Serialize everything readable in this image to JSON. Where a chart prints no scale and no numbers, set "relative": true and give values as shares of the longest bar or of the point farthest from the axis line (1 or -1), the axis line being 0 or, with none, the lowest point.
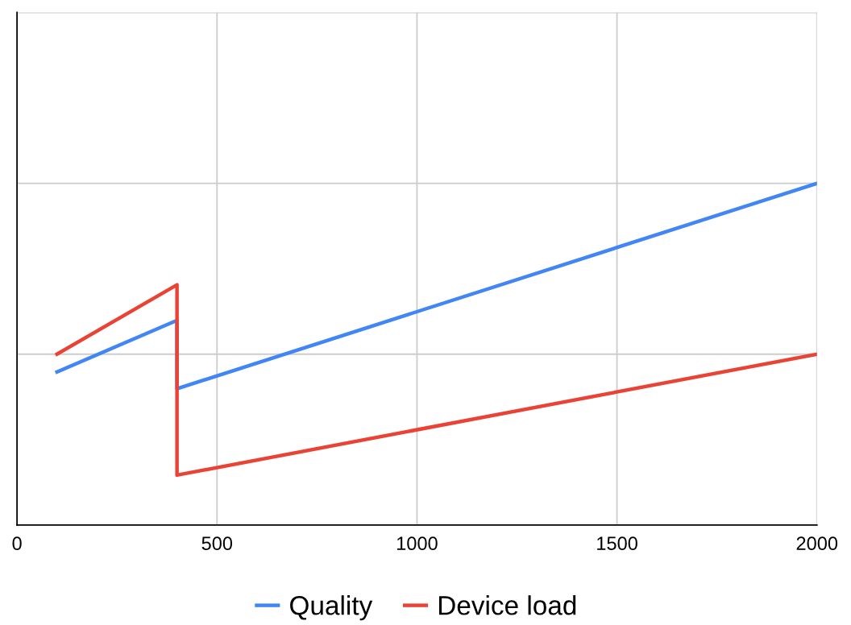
{
  "chart_data": {
    "type": "line",
    "relative": true,
    "x": [
      100,
      400,
      400,
      2000
    ],
    "series": [
      {
        "name": "Quality",
        "color": "#4285f4",
        "values": [
          0.448,
          0.599,
          0.399,
          1.0
        ]
      },
      {
        "name": "Device load",
        "color": "#ea4335",
        "values": [
          0.5,
          0.703,
          0.146,
          0.5
        ]
      }
    ],
    "xlim": [
      0,
      2000
    ],
    "xticks": [
      0,
      500,
      1000,
      1500,
      2000
    ],
    "grid": true,
    "legend": "bottom",
    "marker": "none",
    "line_style": "solid"
  }
}
